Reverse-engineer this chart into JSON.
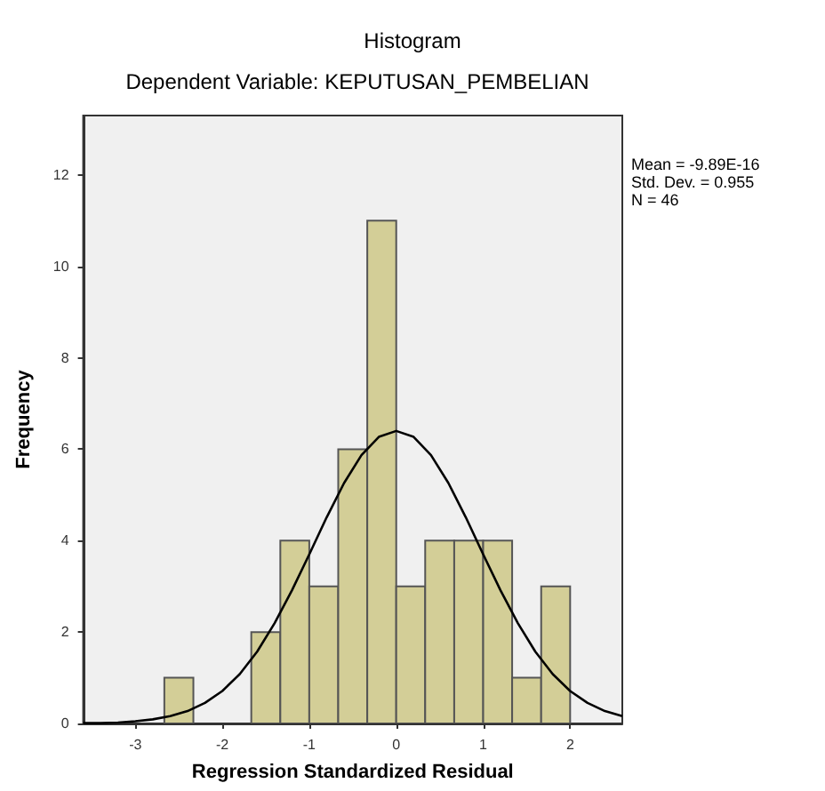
{
  "chart_data": {
    "type": "histogram",
    "title": "Histogram",
    "subtitle": "Dependent Variable: KEPUTUSAN_PEMBELIAN",
    "xlabel": "Regression Standardized Residual",
    "ylabel": "Frequency",
    "annotations": [
      "Mean = -9.89E-16",
      "Std. Dev. = 0.955",
      "N = 46"
    ],
    "bins": [
      -2.667,
      -2.333,
      -2,
      -1.667,
      -1.333,
      -1,
      -0.667,
      -0.333,
      0,
      0.333,
      0.667,
      1,
      1.333,
      1.667,
      2
    ],
    "values": [
      1,
      0,
      0,
      2,
      4,
      3,
      6,
      11,
      3,
      4,
      4,
      4,
      1,
      3
    ],
    "color": "#d3ce97",
    "series": [
      {
        "type": "line",
        "color": "#000000",
        "x": [
          -3.6,
          -3.4,
          -3.2,
          -3.0,
          -2.8,
          -2.6,
          -2.4,
          -2.2,
          -2.0,
          -1.8,
          -1.6,
          -1.4,
          -1.2,
          -1.0,
          -0.8,
          -0.6,
          -0.4,
          -0.2,
          0,
          0.2,
          0.4,
          0.6,
          0.8,
          1.0,
          1.2,
          1.4,
          1.6,
          1.8,
          2.0,
          2.2,
          2.4,
          2.6
        ],
        "values": [
          0.01,
          0.01,
          0.02,
          0.05,
          0.09,
          0.16,
          0.27,
          0.45,
          0.71,
          1.08,
          1.57,
          2.19,
          2.91,
          3.7,
          4.51,
          5.26,
          5.87,
          6.27,
          6.4,
          6.27,
          5.87,
          5.26,
          4.51,
          3.7,
          2.91,
          2.19,
          1.57,
          1.08,
          0.71,
          0.45,
          0.27,
          0.16
        ]
      }
    ],
    "xlim": [
      -3.6,
      2.6
    ],
    "xticks": [
      -3,
      -2,
      -1,
      0,
      1,
      2
    ],
    "ylim": [
      0,
      13.3
    ],
    "yticks": [
      0,
      2,
      4,
      6,
      8,
      10,
      12
    ],
    "grid": false,
    "legend": false,
    "marker": "none",
    "line_style": "solid"
  }
}
